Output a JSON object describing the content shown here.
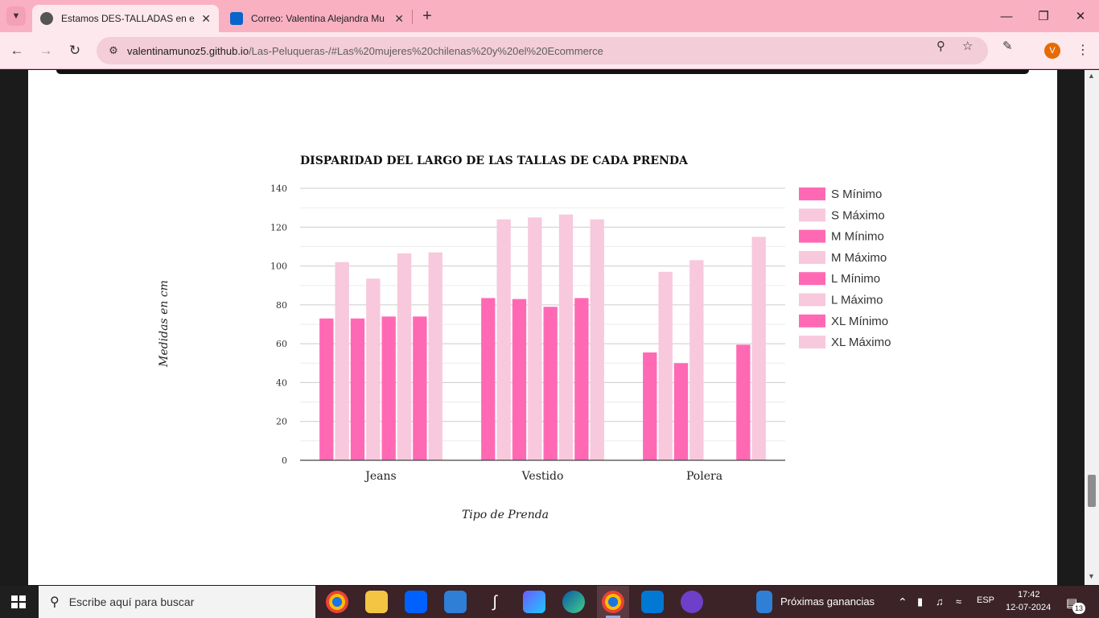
{
  "browser": {
    "tabs": [
      {
        "title": "Estamos DES-TALLADAS en el E",
        "active": true
      },
      {
        "title": "Correo: Valentina Alejandra Mu",
        "active": false
      }
    ],
    "url_host": "valentinamunoz5.github.io",
    "url_path": "/Las-Peluqueras-/#Las%20mujeres%20chilenas%20y%20el%20Ecommerce",
    "profile_initial": "V"
  },
  "chart_data": {
    "type": "bar",
    "title": "DISPARIDAD DEL LARGO DE LAS TALLAS DE CADA PRENDA",
    "xlabel": "Tipo de Prenda",
    "ylabel": "Medidas en cm",
    "ylim": [
      0,
      140
    ],
    "yticks": [
      0,
      20,
      40,
      60,
      80,
      100,
      120,
      140
    ],
    "categories": [
      "Jeans",
      "Vestido",
      "Polera"
    ],
    "legend_position": "right",
    "grid": true,
    "series": [
      {
        "name": "S Mínimo",
        "color": "#ff69b4",
        "values": [
          73,
          83.5,
          55.5
        ]
      },
      {
        "name": "S Máximo",
        "color": "#f8c8dc",
        "values": [
          102,
          124,
          97
        ]
      },
      {
        "name": "M Mínimo",
        "color": "#ff69b4",
        "values": [
          73,
          83,
          50
        ]
      },
      {
        "name": "M Máximo",
        "color": "#f8c8dc",
        "values": [
          93.5,
          125,
          103
        ]
      },
      {
        "name": "L Mínimo",
        "color": "#ff69b4",
        "values": [
          74,
          79,
          0
        ]
      },
      {
        "name": "L Máximo",
        "color": "#f8c8dc",
        "values": [
          106.5,
          126.5,
          0
        ]
      },
      {
        "name": "XL Mínimo",
        "color": "#ff69b4",
        "values": [
          74,
          83.5,
          59.5
        ]
      },
      {
        "name": "XL Máximo",
        "color": "#f8c8dc",
        "values": [
          107,
          124,
          115
        ]
      }
    ]
  },
  "taskbar": {
    "search_placeholder": "Escribe aquí para buscar",
    "widget_text": "Próximas ganancias",
    "language": "ESP",
    "time": "17:42",
    "date": "12-07-2024",
    "notifications": "13"
  }
}
